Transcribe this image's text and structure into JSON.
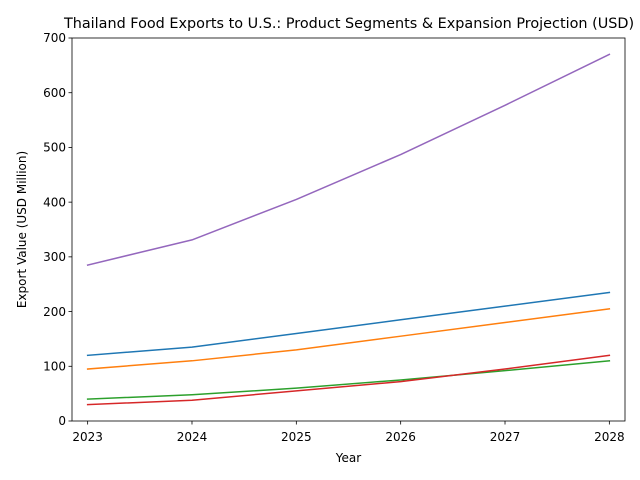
{
  "chart_data": {
    "type": "line",
    "title": "Thailand Food Exports to U.S.: Product Segments & Expansion Projection (USD)",
    "xlabel": "Year",
    "ylabel": "Export Value (USD Million)",
    "x": [
      2023,
      2024,
      2025,
      2026,
      2027,
      2028
    ],
    "x_tick_labels": [
      "2023",
      "2024",
      "2025",
      "2026",
      "2027",
      "2028"
    ],
    "xlim": [
      2022.85,
      2028.15
    ],
    "ylim": [
      0,
      700
    ],
    "y_ticks": [
      0,
      100,
      200,
      300,
      400,
      500,
      600,
      700
    ],
    "y_tick_labels": [
      "0",
      "100",
      "200",
      "300",
      "400",
      "500",
      "600",
      "700"
    ],
    "grid": false,
    "series": [
      {
        "color": "#1f77b4",
        "values": [
          120,
          135,
          160,
          185,
          210,
          235
        ]
      },
      {
        "color": "#ff7f0e",
        "values": [
          95,
          110,
          130,
          155,
          180,
          205
        ]
      },
      {
        "color": "#2ca02c",
        "values": [
          40,
          48,
          60,
          75,
          92,
          110
        ]
      },
      {
        "color": "#d62728",
        "values": [
          30,
          38,
          55,
          72,
          95,
          120
        ]
      },
      {
        "color": "#9467bd",
        "values": [
          285,
          331,
          405,
          487,
          577,
          670
        ]
      }
    ]
  }
}
